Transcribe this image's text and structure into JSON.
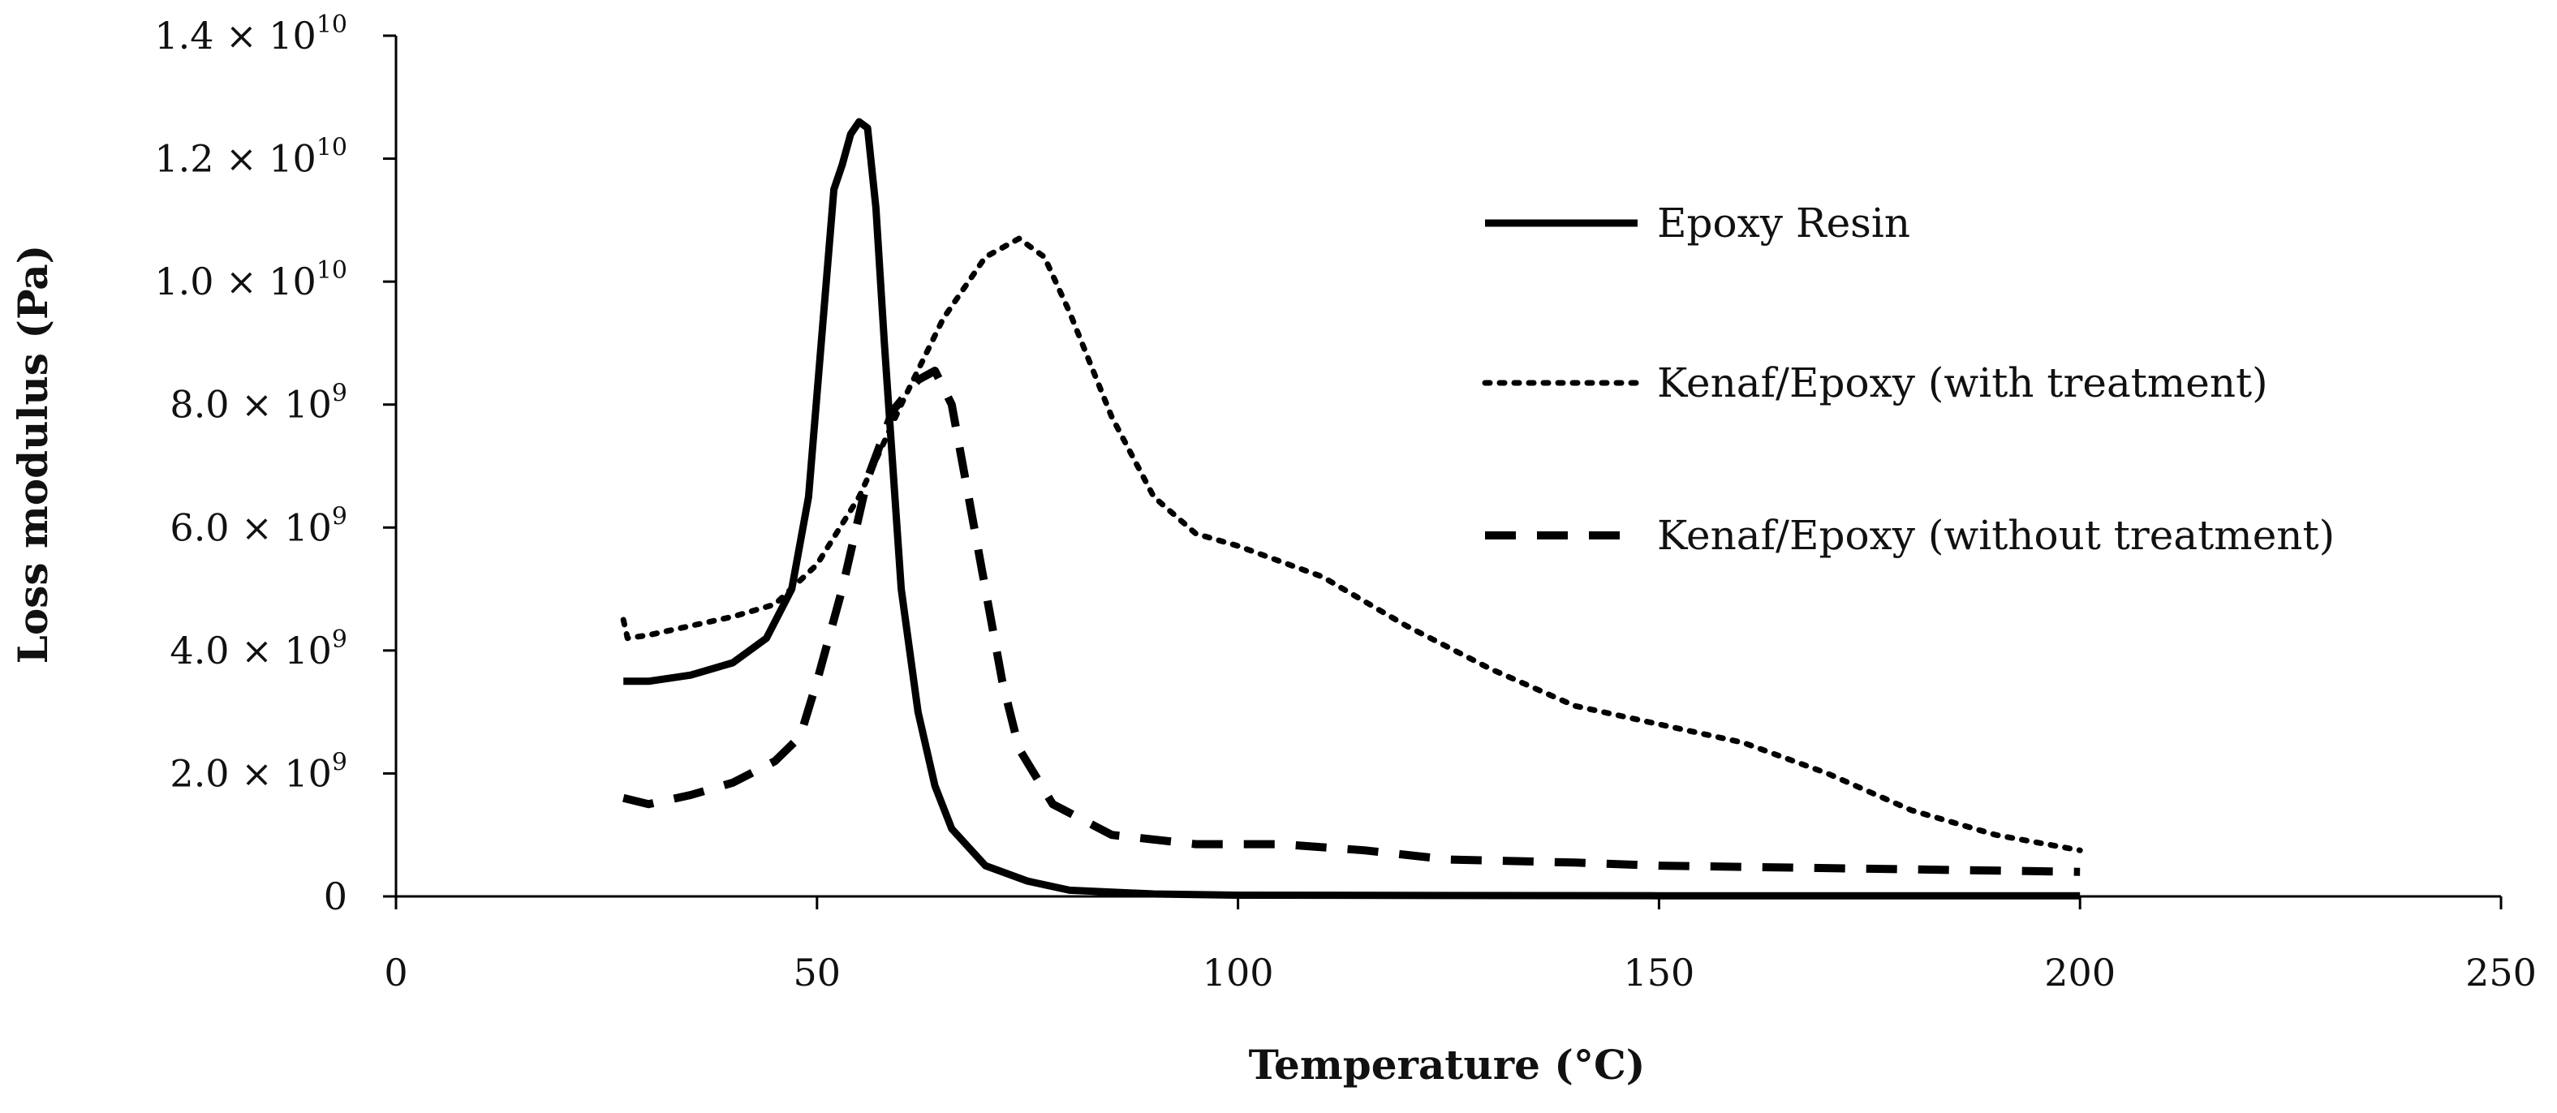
{
  "chart_data": {
    "type": "line",
    "title": "",
    "xlabel": "Temperature (°C)",
    "ylabel": "Loss modulus (Pa)",
    "xlim": [
      0,
      250
    ],
    "ylim": [
      0,
      14000000000
    ],
    "grid": false,
    "legend_position": "top-right",
    "x_ticks": [
      {
        "value": 0,
        "label": "0"
      },
      {
        "value": 50,
        "label": "50"
      },
      {
        "value": 100,
        "label": "100"
      },
      {
        "value": 150,
        "label": "150"
      },
      {
        "value": 200,
        "label": "200"
      },
      {
        "value": 250,
        "label": "250"
      }
    ],
    "y_ticks": [
      {
        "value": 0,
        "label": "0",
        "mant": "",
        "exp": ""
      },
      {
        "value": 2000000000,
        "label": "2.0 × 10^9",
        "mant": "2.0 × 10",
        "exp": "9"
      },
      {
        "value": 4000000000,
        "label": "4.0 × 10^9",
        "mant": "4.0 × 10",
        "exp": "9"
      },
      {
        "value": 6000000000,
        "label": "6.0 × 10^9",
        "mant": "6.0 × 10",
        "exp": "9"
      },
      {
        "value": 8000000000,
        "label": "8.0 × 10^9",
        "mant": "8.0 × 10",
        "exp": "9"
      },
      {
        "value": 10000000000,
        "label": "1.0 × 10^10",
        "mant": "1.0 × 10",
        "exp": "10"
      },
      {
        "value": 12000000000,
        "label": "1.2 × 10^10",
        "mant": "1.2 × 10",
        "exp": "10"
      },
      {
        "value": 14000000000,
        "label": "1.4 × 10^10",
        "mant": "1.4 × 10",
        "exp": "10"
      }
    ],
    "series": [
      {
        "name": "Epoxy Resin",
        "style": "solid",
        "color": "#000000",
        "points": [
          [
            27,
            3500000000.0
          ],
          [
            30,
            3500000000.0
          ],
          [
            35,
            3600000000.0
          ],
          [
            40,
            3800000000.0
          ],
          [
            44,
            4200000000.0
          ],
          [
            47,
            5000000000.0
          ],
          [
            49,
            6500000000.0
          ],
          [
            50.5,
            9000000000.0
          ],
          [
            52,
            11500000000.0
          ],
          [
            53,
            11900000000.0
          ],
          [
            54,
            12400000000.0
          ],
          [
            55,
            12600000000.0
          ],
          [
            56,
            12500000000.0
          ],
          [
            57,
            11200000000.0
          ],
          [
            58,
            9000000000.0
          ],
          [
            59,
            7000000000.0
          ],
          [
            60,
            5000000000.0
          ],
          [
            62,
            3000000000.0
          ],
          [
            64,
            1800000000.0
          ],
          [
            66,
            1100000000.0
          ],
          [
            70,
            500000000.0
          ],
          [
            75,
            250000000.0
          ],
          [
            80,
            100000000.0
          ],
          [
            90,
            40000000.0
          ],
          [
            100,
            20000000.0
          ],
          [
            150,
            10000000.0
          ],
          [
            200,
            10000000.0
          ]
        ]
      },
      {
        "name": "Kenaf/Epoxy (with treatment)",
        "style": "dotted",
        "color": "#000000",
        "points": [
          [
            27,
            4500000000.0
          ],
          [
            27.5,
            4200000000.0
          ],
          [
            30,
            4250000000.0
          ],
          [
            35,
            4400000000.0
          ],
          [
            40,
            4550000000.0
          ],
          [
            45,
            4750000000.0
          ],
          [
            50,
            5400000000.0
          ],
          [
            55,
            6500000000.0
          ],
          [
            60,
            8000000000.0
          ],
          [
            65,
            9400000000.0
          ],
          [
            70,
            10400000000.0
          ],
          [
            74,
            10700000000.0
          ],
          [
            77,
            10400000000.0
          ],
          [
            80,
            9500000000.0
          ],
          [
            85,
            7800000000.0
          ],
          [
            90,
            6500000000.0
          ],
          [
            95,
            5900000000.0
          ],
          [
            100,
            5700000000.0
          ],
          [
            110,
            5200000000.0
          ],
          [
            120,
            4400000000.0
          ],
          [
            130,
            3700000000.0
          ],
          [
            140,
            3100000000.0
          ],
          [
            150,
            2800000000.0
          ],
          [
            160,
            2500000000.0
          ],
          [
            170,
            2000000000.0
          ],
          [
            180,
            1400000000.0
          ],
          [
            190,
            1000000000.0
          ],
          [
            200,
            750000000.0
          ]
        ]
      },
      {
        "name": "Kenaf/Epoxy (without treatment)",
        "style": "dashed",
        "color": "#000000",
        "points": [
          [
            27,
            1600000000.0
          ],
          [
            30,
            1500000000.0
          ],
          [
            35,
            1650000000.0
          ],
          [
            40,
            1850000000.0
          ],
          [
            45,
            2200000000.0
          ],
          [
            48,
            2600000000.0
          ],
          [
            50,
            3500000000.0
          ],
          [
            53,
            5000000000.0
          ],
          [
            56,
            6800000000.0
          ],
          [
            59,
            7900000000.0
          ],
          [
            62,
            8400000000.0
          ],
          [
            64,
            8550000000.0
          ],
          [
            66,
            8000000000.0
          ],
          [
            68,
            6500000000.0
          ],
          [
            70,
            5000000000.0
          ],
          [
            72,
            3500000000.0
          ],
          [
            74,
            2400000000.0
          ],
          [
            78,
            1500000000.0
          ],
          [
            85,
            1000000000.0
          ],
          [
            95,
            850000000.0
          ],
          [
            105,
            850000000.0
          ],
          [
            115,
            750000000.0
          ],
          [
            125,
            600000000.0
          ],
          [
            140,
            550000000.0
          ],
          [
            150,
            500000000.0
          ],
          [
            175,
            450000000.0
          ],
          [
            200,
            400000000.0
          ]
        ]
      }
    ]
  }
}
